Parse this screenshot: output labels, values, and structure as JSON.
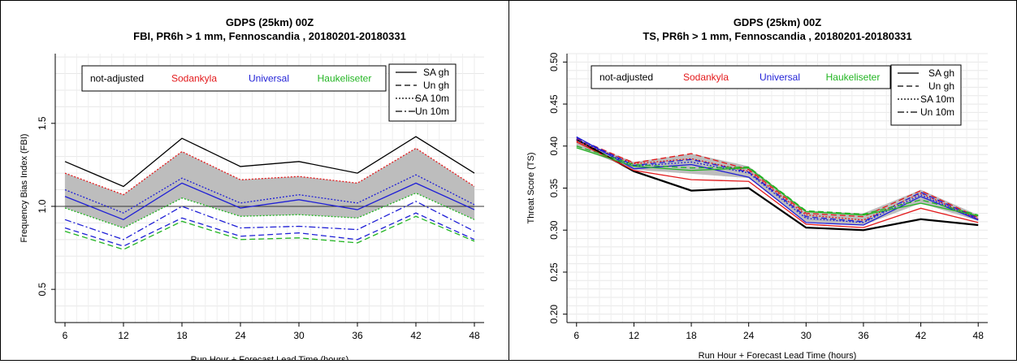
{
  "chart_data": [
    {
      "type": "line",
      "title": "GDPS (25km) 00Z",
      "subtitle": "FBI, PR6h > 1 mm, Fennoscandia , 20180201-20180331",
      "xlabel": "Run Hour + Forecast Lead Time (hours)",
      "ylabel": "Frequency Bias Index (FBI)",
      "x": [
        6,
        12,
        18,
        24,
        30,
        36,
        42,
        48
      ],
      "xlim": [
        5,
        49
      ],
      "ylim": [
        0.3,
        1.92
      ],
      "yticks": [
        0.5,
        1.0,
        1.5
      ],
      "ytick_labels": [
        "0.5",
        "1.0",
        "1.5"
      ],
      "reference_line": 1.0,
      "grid": true,
      "legend_position": "top",
      "shaded_band": {
        "color": "#bdbdbd",
        "lower": [
          0.99,
          0.87,
          1.05,
          0.94,
          0.95,
          0.93,
          1.08,
          0.92
        ],
        "upper": [
          1.2,
          1.07,
          1.33,
          1.16,
          1.18,
          1.14,
          1.35,
          1.12
        ]
      },
      "series": [
        {
          "color": "#000000",
          "dash": "solid",
          "values": [
            1.27,
            1.12,
            1.41,
            1.24,
            1.27,
            1.2,
            1.42,
            1.2
          ]
        },
        {
          "color": "#e31a1c",
          "dash": "dotted",
          "values": [
            1.2,
            1.07,
            1.33,
            1.16,
            1.18,
            1.14,
            1.35,
            1.12
          ]
        },
        {
          "color": "#1f1fd6",
          "dash": "solid",
          "values": [
            1.06,
            0.92,
            1.14,
            0.99,
            1.04,
            0.98,
            1.14,
            0.98
          ]
        },
        {
          "color": "#1f1fd6",
          "dash": "dotted",
          "values": [
            1.1,
            0.96,
            1.17,
            1.02,
            1.07,
            1.02,
            1.19,
            1.01
          ]
        },
        {
          "color": "#1f1fd6",
          "dash": "dashdot",
          "values": [
            0.92,
            0.8,
            1.0,
            0.87,
            0.88,
            0.86,
            1.03,
            0.85
          ]
        },
        {
          "color": "#1f1fd6",
          "dash": "dashed",
          "values": [
            0.87,
            0.76,
            0.93,
            0.82,
            0.84,
            0.8,
            0.96,
            0.8
          ]
        },
        {
          "color": "#22b522",
          "dash": "dotted",
          "values": [
            0.99,
            0.87,
            1.05,
            0.94,
            0.95,
            0.93,
            1.08,
            0.92
          ]
        },
        {
          "color": "#22b522",
          "dash": "dashed",
          "values": [
            0.85,
            0.74,
            0.91,
            0.8,
            0.81,
            0.78,
            0.94,
            0.79
          ]
        }
      ],
      "legend_models": [
        {
          "label": "not-adjusted",
          "color": "#000000"
        },
        {
          "label": "Sodankyla",
          "color": "#e31a1c"
        },
        {
          "label": "Universal",
          "color": "#1f1fd6"
        },
        {
          "label": "Haukeliseter",
          "color": "#22b522"
        }
      ],
      "legend_styles": [
        {
          "label": "SA gh",
          "dash": "solid"
        },
        {
          "label": "Un gh",
          "dash": "dashed"
        },
        {
          "label": "SA 10m",
          "dash": "dotted"
        },
        {
          "label": "Un 10m",
          "dash": "dashdot"
        }
      ]
    },
    {
      "type": "line",
      "title": "GDPS (25km) 00Z",
      "subtitle": "TS, PR6h > 1 mm, Fennoscandia , 20180201-20180331",
      "xlabel": "Run Hour + Forecast Lead Time (hours)",
      "ylabel": "Threat Score (TS)",
      "x": [
        6,
        12,
        18,
        24,
        30,
        36,
        42,
        48
      ],
      "xlim": [
        5,
        49
      ],
      "ylim": [
        0.19,
        0.51
      ],
      "yticks": [
        0.2,
        0.25,
        0.3,
        0.35,
        0.4,
        0.45,
        0.5
      ],
      "ytick_labels": [
        "0.20",
        "0.25",
        "0.30",
        "0.35",
        "0.40",
        "0.45",
        "0.50"
      ],
      "grid": true,
      "legend_position": "top",
      "shaded_band": {
        "color": "#bdbdbd",
        "lower": [
          0.399,
          0.372,
          0.367,
          0.362,
          0.31,
          0.306,
          0.332,
          0.311
        ],
        "upper": [
          0.408,
          0.381,
          0.391,
          0.376,
          0.323,
          0.32,
          0.348,
          0.318
        ]
      },
      "series": [
        {
          "color": "#000000",
          "dash": "solid",
          "width": 2.2,
          "values": [
            0.408,
            0.37,
            0.347,
            0.35,
            0.303,
            0.3,
            0.313,
            0.306
          ]
        },
        {
          "color": "#e31a1c",
          "dash": "solid",
          "values": [
            0.405,
            0.371,
            0.36,
            0.358,
            0.307,
            0.303,
            0.326,
            0.309
          ]
        },
        {
          "color": "#e31a1c",
          "dash": "dashed",
          "values": [
            0.409,
            0.38,
            0.391,
            0.372,
            0.32,
            0.316,
            0.347,
            0.315
          ]
        },
        {
          "color": "#e31a1c",
          "dash": "dotted",
          "values": [
            0.406,
            0.379,
            0.385,
            0.37,
            0.318,
            0.312,
            0.344,
            0.313
          ]
        },
        {
          "color": "#1f1fd6",
          "dash": "solid",
          "values": [
            0.411,
            0.373,
            0.378,
            0.363,
            0.309,
            0.306,
            0.34,
            0.312
          ]
        },
        {
          "color": "#1f1fd6",
          "dash": "dashed",
          "values": [
            0.41,
            0.377,
            0.384,
            0.369,
            0.316,
            0.31,
            0.345,
            0.314
          ]
        },
        {
          "color": "#1f1fd6",
          "dash": "dotted",
          "values": [
            0.408,
            0.376,
            0.381,
            0.368,
            0.314,
            0.309,
            0.342,
            0.313
          ]
        },
        {
          "color": "#22b522",
          "dash": "solid",
          "values": [
            0.398,
            0.376,
            0.371,
            0.374,
            0.322,
            0.318,
            0.332,
            0.317
          ]
        },
        {
          "color": "#22b522",
          "dash": "dashed",
          "values": [
            0.4,
            0.378,
            0.374,
            0.375,
            0.323,
            0.319,
            0.336,
            0.318
          ]
        }
      ],
      "legend_models": [
        {
          "label": "not-adjusted",
          "color": "#000000"
        },
        {
          "label": "Sodankyla",
          "color": "#e31a1c"
        },
        {
          "label": "Universal",
          "color": "#1f1fd6"
        },
        {
          "label": "Haukeliseter",
          "color": "#22b522"
        }
      ],
      "legend_styles": [
        {
          "label": "SA gh",
          "dash": "solid"
        },
        {
          "label": "Un gh",
          "dash": "dashed"
        },
        {
          "label": "SA 10m",
          "dash": "dotted"
        },
        {
          "label": "Un 10m",
          "dash": "dashdot"
        }
      ]
    }
  ]
}
